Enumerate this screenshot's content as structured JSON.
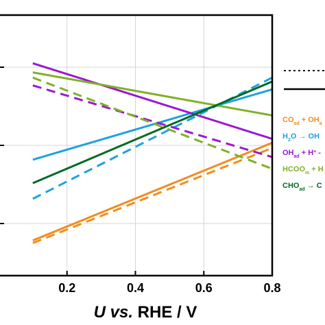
{
  "chart_data": {
    "type": "line",
    "xlim": [
      0.0,
      0.8
    ],
    "ylim": [
      0.0,
      1.0
    ],
    "grid": true,
    "x_ticks": [
      0.2,
      0.4,
      0.6,
      0.8
    ],
    "x_tick_labels": [
      "0.2",
      "0.4",
      "0.6",
      "0.8"
    ],
    "y_ticks": [
      0.2,
      0.5,
      0.8
    ],
    "xlabel": {
      "italic": "U vs.",
      "plain": " RHE / V"
    },
    "ylabel": "",
    "series": [
      {
        "name": "CO_ad + OH_ad",
        "color": "#F28C1E",
        "style": "solid",
        "x": [
          0.1,
          0.8
        ],
        "y": [
          0.135,
          0.51
        ]
      },
      {
        "name": "CO_ad + OH_ad",
        "color": "#F28C1E",
        "style": "dashed",
        "x": [
          0.1,
          0.8
        ],
        "y": [
          0.125,
          0.49
        ]
      },
      {
        "name": "H2O → OH",
        "color": "#1CA1E1",
        "style": "solid",
        "x": [
          0.1,
          0.8
        ],
        "y": [
          0.445,
          0.715
        ]
      },
      {
        "name": "H2O → OH",
        "color": "#1CA1E1",
        "style": "dashed",
        "x": [
          0.1,
          0.8
        ],
        "y": [
          0.295,
          0.76
        ]
      },
      {
        "name": "OH_ad + H+",
        "color": "#9B17D0",
        "style": "solid",
        "x": [
          0.1,
          0.8
        ],
        "y": [
          0.815,
          0.525
        ]
      },
      {
        "name": "OH_ad + H+",
        "color": "#9B17D0",
        "style": "dashed",
        "x": [
          0.1,
          0.8
        ],
        "y": [
          0.73,
          0.455
        ]
      },
      {
        "name": "HCOO_m + H",
        "color": "#7FB125",
        "style": "solid",
        "x": [
          0.1,
          0.8
        ],
        "y": [
          0.78,
          0.615
        ]
      },
      {
        "name": "HCOO_m + H",
        "color": "#7FB125",
        "style": "dashed",
        "x": [
          0.1,
          0.8
        ],
        "y": [
          0.76,
          0.41
        ]
      },
      {
        "name": "CHO_ad → C",
        "color": "#006A22",
        "style": "solid",
        "x": [
          0.1,
          0.8
        ],
        "y": [
          0.355,
          0.745
        ]
      }
    ],
    "legend": {
      "placement": "right",
      "style_key": [
        {
          "style": "dotted"
        },
        {
          "style": "solid"
        }
      ],
      "entries": [
        {
          "base": "CO",
          "sub": "ad",
          "rest": " + OH",
          "sub2": "a",
          "color": "#F28C1E"
        },
        {
          "base": "H",
          "sub": "2",
          "rest": "O → OH",
          "sub2": "",
          "color": "#1CA1E1"
        },
        {
          "base": "OH",
          "sub": "ad",
          "rest": " + H",
          "sup": "+",
          "rest2": " -",
          "color": "#9B17D0"
        },
        {
          "base": "HCOO",
          "sub": "m",
          "rest": " + H",
          "sub2": "",
          "color": "#7FB125"
        },
        {
          "base": "CHO",
          "sub": "ad",
          "rest": " → C",
          "sub2": "",
          "color": "#006A22"
        }
      ]
    }
  }
}
